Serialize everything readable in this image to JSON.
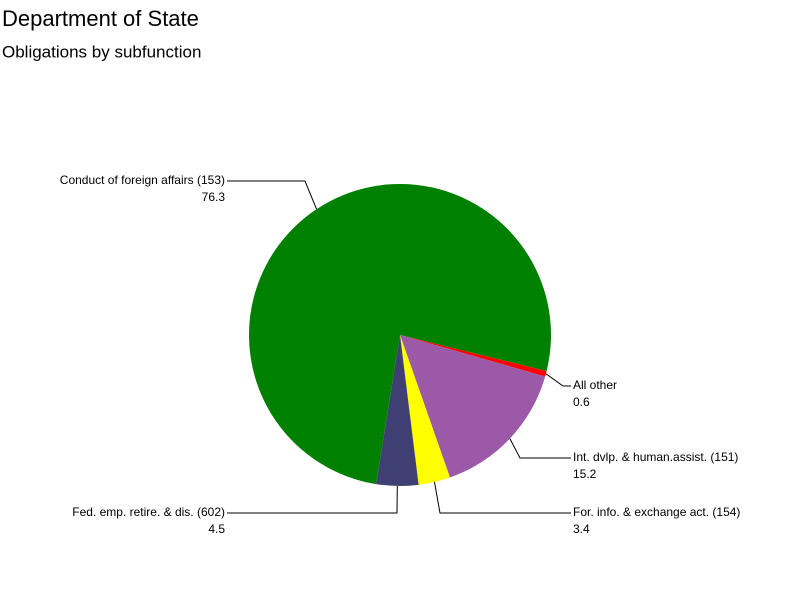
{
  "chart_data": {
    "type": "pie",
    "title": "Department of State",
    "subtitle": "Obligations by subfunction",
    "categories": [
      "All other",
      "Int. dvlp. & human.assist. (151)",
      "For. info. & exchange act. (154)",
      "Fed. emp. retire. & dis. (602)",
      "Conduct of foreign affairs (153)"
    ],
    "values": [
      0.6,
      15.2,
      3.4,
      4.5,
      76.3
    ],
    "colors": [
      "#ff0000",
      "#9b59a8",
      "#ffff00",
      "#3f3f74",
      "#008000"
    ]
  }
}
